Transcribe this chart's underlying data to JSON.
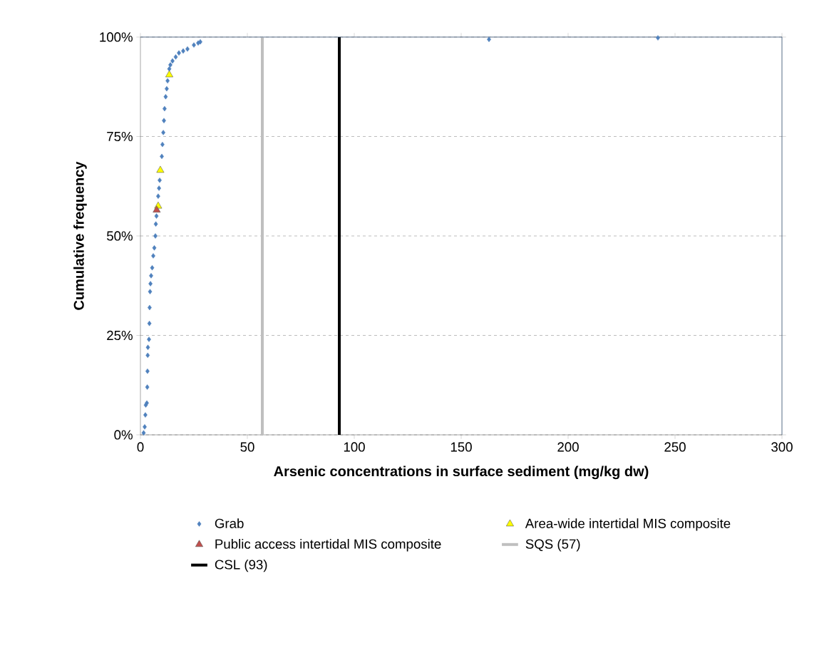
{
  "chart_data": {
    "type": "scatter",
    "xlabel": "Arsenic concentrations in surface sediment (mg/kg dw)",
    "ylabel": "Cumulative frequency",
    "xlim": [
      0,
      300
    ],
    "xticks": [
      0,
      50,
      100,
      150,
      200,
      250,
      300
    ],
    "ylim": [
      0,
      100
    ],
    "yticks": [
      {
        "value": 0,
        "label": "0%"
      },
      {
        "value": 25,
        "label": "25%"
      },
      {
        "value": 50,
        "label": "50%"
      },
      {
        "value": 75,
        "label": "75%"
      },
      {
        "value": 100,
        "label": "100%"
      }
    ],
    "grid": "y",
    "legend": "bottom",
    "series": [
      {
        "name": "Grab",
        "color": "#4f81bd",
        "marker": "diamond",
        "x": [
          1.5,
          2,
          2.3,
          2.5,
          3,
          3.2,
          3.3,
          3.4,
          3.5,
          4,
          4.2,
          4.3,
          4.5,
          4.7,
          5,
          5.5,
          6,
          6.5,
          7,
          7.2,
          7.5,
          8,
          8.3,
          8.7,
          9,
          9.5,
          10,
          10.3,
          10.7,
          11,
          11.3,
          11.8,
          12.3,
          12.7,
          13,
          13.5,
          14,
          15,
          16.5,
          18,
          20,
          22,
          25,
          27,
          28,
          163,
          242
        ],
        "values": [
          0.5,
          2,
          5,
          7.5,
          8,
          12,
          16,
          20,
          22,
          24,
          28,
          32,
          36,
          38,
          40,
          42,
          45,
          47,
          50,
          53,
          55,
          null,
          60,
          62,
          64,
          null,
          70,
          73,
          76,
          79,
          82,
          85,
          87,
          89,
          null,
          92,
          93,
          94,
          95,
          96,
          96.5,
          97,
          98,
          98.5,
          98.8,
          99.4,
          99.8
        ]
      },
      {
        "name": "Area-wide intertidal MIS composite",
        "color": "#ffff00",
        "marker": "triangle",
        "x": [
          8.3,
          9.3,
          13.5
        ],
        "values": [
          57.5,
          66.5,
          90.5
        ]
      },
      {
        "name": "Public access intertidal MIS composite",
        "color": "#c0504d",
        "marker": "triangle",
        "x": [
          7.6
        ],
        "values": [
          56.5
        ]
      }
    ],
    "ref_lines": [
      {
        "axis": "x",
        "value": 57,
        "label": "SQS (57)",
        "color": "#bfbfbf"
      },
      {
        "axis": "x",
        "value": 93,
        "label": "CSL (93)",
        "color": "#000000"
      }
    ]
  }
}
